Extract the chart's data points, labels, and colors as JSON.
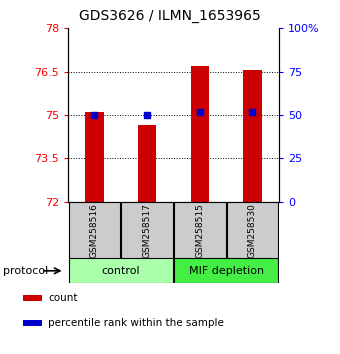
{
  "title": "GDS3626 / ILMN_1653965",
  "samples": [
    "GSM258516",
    "GSM258517",
    "GSM258515",
    "GSM258530"
  ],
  "bar_values": [
    75.1,
    74.65,
    76.7,
    76.55
  ],
  "percentile_values": [
    75.0,
    75.0,
    75.1,
    75.1
  ],
  "ylim_left": [
    72,
    78
  ],
  "ylim_right": [
    0,
    100
  ],
  "left_ticks": [
    72,
    73.5,
    75,
    76.5,
    78
  ],
  "right_ticks": [
    0,
    25,
    50,
    75,
    100
  ],
  "right_tick_labels": [
    "0",
    "25",
    "50",
    "75",
    "100%"
  ],
  "bar_color": "#cc0000",
  "dot_color": "#0000cc",
  "bar_width": 0.35,
  "groups": [
    {
      "label": "control",
      "samples": [
        0,
        1
      ],
      "color": "#aaffaa"
    },
    {
      "label": "MIF depletion",
      "samples": [
        2,
        3
      ],
      "color": "#44ee44"
    }
  ],
  "protocol_label": "protocol",
  "legend_items": [
    {
      "color": "#cc0000",
      "label": "count"
    },
    {
      "color": "#0000cc",
      "label": "percentile rank within the sample"
    }
  ],
  "background_color": "#ffffff",
  "sample_box_color": "#cccccc",
  "title_fontsize": 10,
  "tick_fontsize": 8,
  "sample_fontsize": 6.5,
  "legend_fontsize": 7.5
}
